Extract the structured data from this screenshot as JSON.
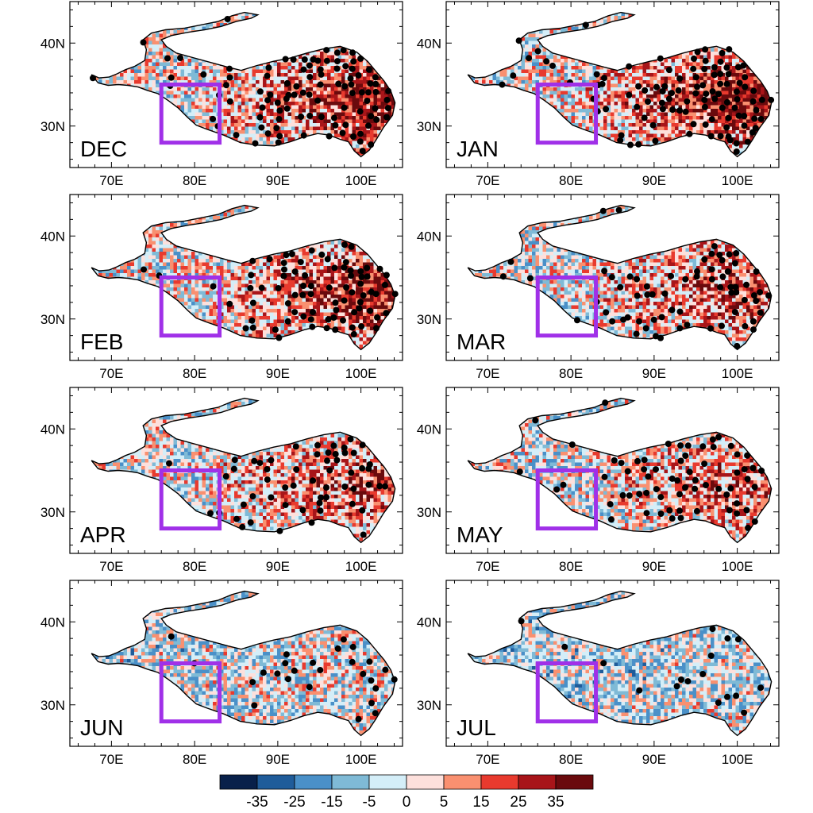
{
  "figure": {
    "x_axis": {
      "min": 65,
      "max": 105,
      "ticks": [
        70,
        80,
        90,
        100
      ],
      "tick_labels": [
        "70E",
        "80E",
        "90E",
        "100E"
      ]
    },
    "y_axis": {
      "min": 25,
      "max": 45,
      "ticks": [
        30,
        40
      ],
      "tick_labels": [
        "30N",
        "40N"
      ]
    },
    "region_box": {
      "lon_min": 76,
      "lon_max": 83,
      "lat_min": 28,
      "lat_max": 35,
      "color": "#a030e8"
    },
    "panels": [
      {
        "label": "DEC",
        "row": 0,
        "col": 0,
        "bias": 0.55,
        "dot_density": 0.55
      },
      {
        "label": "JAN",
        "row": 0,
        "col": 1,
        "bias": 0.6,
        "dot_density": 0.6
      },
      {
        "label": "FEB",
        "row": 1,
        "col": 0,
        "bias": 0.55,
        "dot_density": 0.45
      },
      {
        "label": "MAR",
        "row": 1,
        "col": 1,
        "bias": 0.4,
        "dot_density": 0.4
      },
      {
        "label": "APR",
        "row": 2,
        "col": 0,
        "bias": 0.4,
        "dot_density": 0.35
      },
      {
        "label": "MAY",
        "row": 2,
        "col": 1,
        "bias": 0.35,
        "dot_density": 0.4
      },
      {
        "label": "JUN",
        "row": 3,
        "col": 0,
        "bias": 0.05,
        "dot_density": 0.15
      },
      {
        "label": "JUL",
        "row": 3,
        "col": 1,
        "bias": -0.05,
        "dot_density": 0.1
      }
    ],
    "colorbar": {
      "colors": [
        "#08204a",
        "#1f5c9a",
        "#4a90c8",
        "#7fbad6",
        "#d4eef8",
        "#fde0dc",
        "#f99070",
        "#e83a2e",
        "#a81519",
        "#6a0a0d"
      ],
      "labels": [
        "-35",
        "-25",
        "-15",
        "-5",
        "0",
        "5",
        "15",
        "25",
        "35"
      ]
    }
  }
}
